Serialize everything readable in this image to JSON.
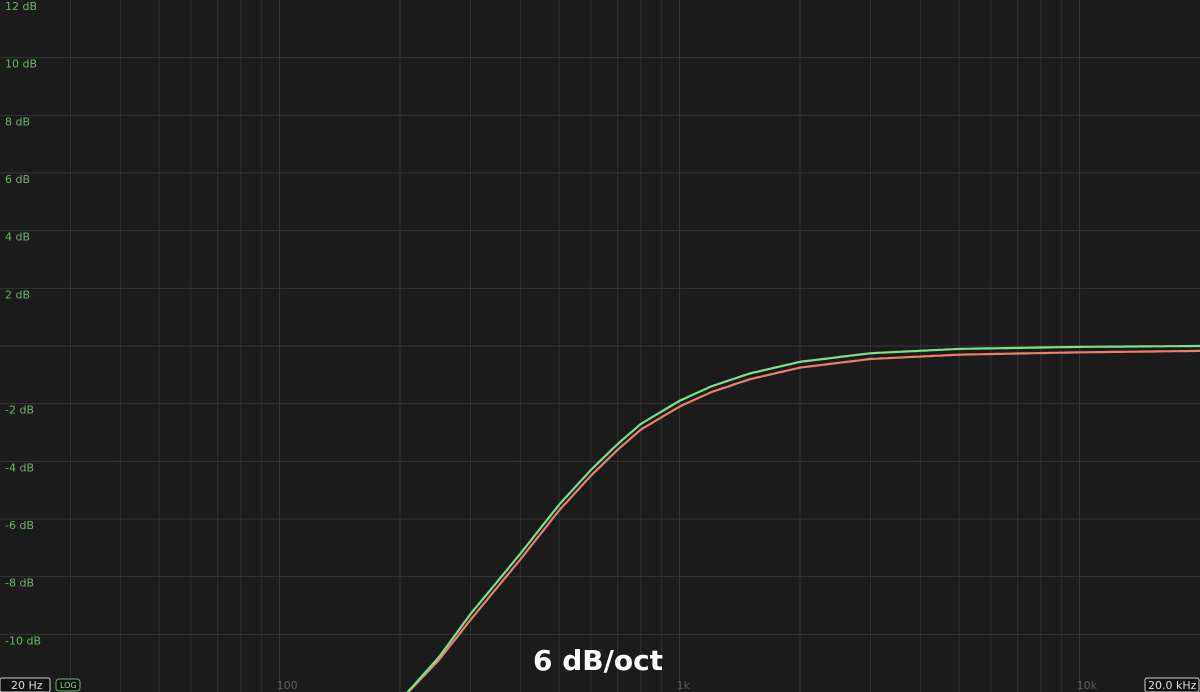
{
  "colors": {
    "background": "#1b1b1b",
    "grid": "#3a3a3a",
    "db_label": "#6db36d",
    "curve_green": "#7ee08a",
    "curve_red": "#e8806c"
  },
  "overlay": {
    "slope_label": "6 dB/oct",
    "min_freq_label": "20 Hz",
    "max_freq_label": "20.0 kHz",
    "scale_button": "LOG"
  },
  "chart_data": {
    "type": "line",
    "x_scale": "log",
    "xlim": [
      20,
      20000
    ],
    "ylim": [
      -12,
      12
    ],
    "grid": true,
    "y_tick_labels": [
      {
        "value": 12,
        "label": "12 dB"
      },
      {
        "value": 10,
        "label": "10 dB"
      },
      {
        "value": 8,
        "label": "8 dB"
      },
      {
        "value": 6,
        "label": "6 dB"
      },
      {
        "value": 4,
        "label": "4 dB"
      },
      {
        "value": 2,
        "label": "2 dB"
      },
      {
        "value": -2,
        "label": "-2 dB"
      },
      {
        "value": -4,
        "label": "-4 dB"
      },
      {
        "value": -6,
        "label": "-6 dB"
      },
      {
        "value": -8,
        "label": "-8 dB"
      },
      {
        "value": -10,
        "label": "-10 dB"
      }
    ],
    "x_tick_labels": [
      {
        "value": 100,
        "label": "100"
      },
      {
        "value": 1000,
        "label": "1k"
      },
      {
        "value": 10000,
        "label": "10k"
      }
    ],
    "series": [
      {
        "color": "#7ee08a",
        "x": [
          200,
          250,
          300,
          400,
          500,
          600,
          700,
          800,
          1000,
          1200,
          1500,
          2000,
          3000,
          5000,
          10000,
          20000
        ],
        "y": [
          -12.3,
          -10.8,
          -9.3,
          -7.2,
          -5.5,
          -4.3,
          -3.4,
          -2.7,
          -1.9,
          -1.4,
          -0.95,
          -0.55,
          -0.25,
          -0.1,
          -0.03,
          0
        ]
      },
      {
        "color": "#e8806c",
        "x": [
          200,
          250,
          300,
          400,
          500,
          600,
          700,
          800,
          1000,
          1200,
          1500,
          2000,
          3000,
          5000,
          10000,
          20000
        ],
        "y": [
          -12.3,
          -10.9,
          -9.5,
          -7.4,
          -5.7,
          -4.5,
          -3.6,
          -2.9,
          -2.1,
          -1.6,
          -1.15,
          -0.75,
          -0.45,
          -0.3,
          -0.22,
          -0.17
        ]
      }
    ]
  }
}
